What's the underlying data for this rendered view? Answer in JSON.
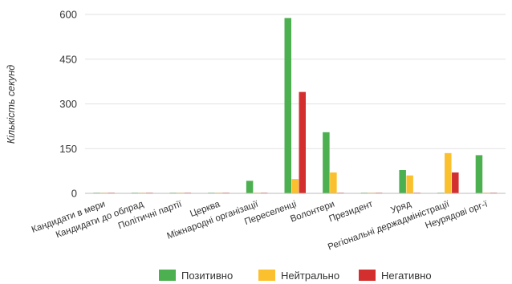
{
  "chart_data": {
    "type": "bar",
    "ylabel": "Кількість секунд",
    "ylim": [
      0,
      600
    ],
    "yticks": [
      0,
      150,
      300,
      450,
      600
    ],
    "grid": true,
    "legend_position": "bottom",
    "categories": [
      "Кандидати в мери",
      "Кандидати до облрад",
      "Політичні партії",
      "Церква",
      "Міжнародні організації",
      "Переселенці",
      "Волонтери",
      "Президент",
      "Уряд",
      "Регіональні держадміністрації",
      "Неурядові орг-ї"
    ],
    "series": [
      {
        "name": "Позитивно",
        "color": "#4caf50",
        "values": [
          0,
          0,
          0,
          0,
          42,
          588,
          205,
          0,
          78,
          0,
          128
        ]
      },
      {
        "name": "Нейтрально",
        "color": "#fbc02d",
        "values": [
          0,
          0,
          0,
          0,
          0,
          48,
          70,
          0,
          60,
          135,
          0
        ]
      },
      {
        "name": "Негативно",
        "color": "#d32f2f",
        "values": [
          0,
          0,
          0,
          0,
          0,
          340,
          0,
          0,
          0,
          70,
          0
        ]
      }
    ]
  }
}
